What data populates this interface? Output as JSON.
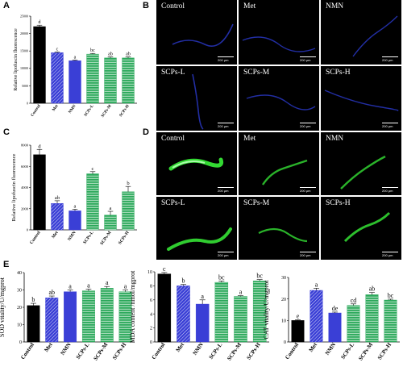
{
  "figure": {
    "panel_letters": [
      "A",
      "B",
      "C",
      "D",
      "E"
    ]
  },
  "colors": {
    "control": "#000000",
    "met": "#3a3fd6",
    "nmn": "#3a3fd6",
    "scps": "#2aa85a",
    "fluor_blue": "#2a3acc",
    "fluor_green": "#3cff3c"
  },
  "fill_patterns": {
    "Control": "solid",
    "Met": "diagonal-hatch",
    "NMN": "solid",
    "SCPs-L": "horizontal-hatch",
    "SCPs-M": "horizontal-hatch",
    "SCPs-H": "horizontal-hatch"
  },
  "chart_data": [
    {
      "panel": "A",
      "type": "bar",
      "ylabel": "Relative lipofuscin fluorescence",
      "ylim": [
        0,
        25000
      ],
      "yticks": [
        0,
        5000,
        10000,
        15000,
        20000,
        25000
      ],
      "categories": [
        "Control",
        "Met",
        "NMN",
        "SCPs-L",
        "SCPs-M",
        "SCPs-H"
      ],
      "values": [
        22000,
        14500,
        12200,
        14100,
        13000,
        13000
      ],
      "errors": [
        400,
        250,
        200,
        200,
        300,
        300
      ],
      "sig_letters": [
        "d",
        "c",
        "a",
        "bc",
        "ab",
        "ab"
      ]
    },
    {
      "panel": "C",
      "type": "bar",
      "ylabel": "Relative lipofuscin fluorescence",
      "ylim": [
        0,
        8000
      ],
      "yticks": [
        0,
        2000,
        4000,
        6000,
        8000
      ],
      "categories": [
        "Control",
        "Met",
        "NMN",
        "SCPs-L",
        "SCPs-M",
        "SCPs-H"
      ],
      "values": [
        7100,
        2500,
        1800,
        5300,
        1400,
        3600
      ],
      "errors": [
        500,
        250,
        150,
        200,
        350,
        500
      ],
      "sig_letters": [
        "d",
        "ab",
        "a",
        "c",
        "a",
        "b"
      ]
    },
    {
      "panel": "E1",
      "type": "bar",
      "ylabel": "SOD vitality/U/mgprot",
      "ylim": [
        0,
        40
      ],
      "yticks": [
        0,
        10,
        20,
        30,
        40
      ],
      "categories": [
        "Control",
        "Met",
        "NMN",
        "SCPs-L",
        "SCPs-M",
        "SCPs-H"
      ],
      "values": [
        21,
        25.5,
        29,
        29.5,
        31,
        29
      ],
      "errors": [
        1.3,
        1.0,
        1.0,
        1.0,
        1.0,
        1.0
      ],
      "sig_letters": [
        "b",
        "ab",
        "a",
        "a",
        "a",
        "a"
      ]
    },
    {
      "panel": "E2",
      "type": "bar",
      "ylabel": "MDA content /nmol/mgprot",
      "ylim": [
        0,
        10
      ],
      "yticks": [
        0,
        2,
        4,
        6,
        8,
        10
      ],
      "categories": [
        "Control",
        "Met",
        "NMN",
        "SCPs-L",
        "SCPs-M",
        "SCPs-H"
      ],
      "values": [
        9.7,
        8.0,
        5.4,
        8.5,
        6.5,
        8.7
      ],
      "errors": [
        0.2,
        0.2,
        0.6,
        0.2,
        0.1,
        0.2
      ],
      "sig_letters": [
        "c",
        "b",
        "a",
        "bc",
        "a",
        "bc"
      ]
    },
    {
      "panel": "E3",
      "type": "bar",
      "ylabel": "CAT vitality/U/mgprot",
      "ylim": [
        0,
        30
      ],
      "yticks": [
        0,
        10,
        20,
        30
      ],
      "categories": [
        "Control",
        "Met",
        "NMN",
        "SCPs-L",
        "SCPs-M",
        "SCPs-H"
      ],
      "values": [
        10,
        24,
        13.5,
        17,
        22,
        19.5
      ],
      "errors": [
        0.3,
        1.0,
        0.4,
        0.7,
        1.0,
        0.4
      ],
      "sig_letters": [
        "e",
        "a",
        "de",
        "cd",
        "ab",
        "bc"
      ]
    }
  ],
  "panel_B": {
    "tiles": [
      {
        "label": "Control",
        "scale": "200 μm"
      },
      {
        "label": "Met",
        "scale": "200 μm"
      },
      {
        "label": "NMN",
        "scale": "200 μm"
      },
      {
        "label": "SCPs-L",
        "scale": "200 μm"
      },
      {
        "label": "SCPs-M",
        "scale": "200 μm"
      },
      {
        "label": "SCPs-H",
        "scale": "200 μm"
      }
    ]
  },
  "panel_D": {
    "tiles": [
      {
        "label": "Control",
        "scale": "200 μm"
      },
      {
        "label": "Met",
        "scale": "200 μm"
      },
      {
        "label": "NMN",
        "scale": "200 μm"
      },
      {
        "label": "SCPs-L",
        "scale": "200 μm"
      },
      {
        "label": "SCPs-M",
        "scale": "200 μm"
      },
      {
        "label": "SCPs-H",
        "scale": "200 μm"
      }
    ]
  }
}
